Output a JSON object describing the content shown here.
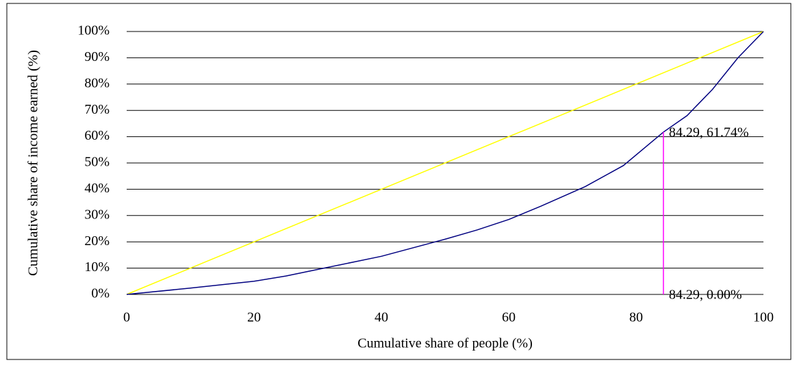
{
  "chart_data": {
    "type": "line",
    "xlabel": "Cumulative share of people (%)",
    "ylabel": "Cumulative share of income earned (%)",
    "xlim": [
      0,
      100
    ],
    "xticks": [
      0,
      20,
      40,
      60,
      80,
      100
    ],
    "ylim": [
      0,
      100
    ],
    "yticks": [
      {
        "value": 0,
        "label": "0%"
      },
      {
        "value": 10,
        "label": "10%"
      },
      {
        "value": 20,
        "label": "20%"
      },
      {
        "value": 30,
        "label": "30%"
      },
      {
        "value": 40,
        "label": "40%"
      },
      {
        "value": 50,
        "label": "50%"
      },
      {
        "value": 60,
        "label": "60%"
      },
      {
        "value": 70,
        "label": "70%"
      },
      {
        "value": 80,
        "label": "80%"
      },
      {
        "value": 90,
        "label": "90%"
      },
      {
        "value": 100,
        "label": "100%"
      }
    ],
    "grid": true,
    "series": [
      {
        "color": "#ffff00",
        "x": [
          0,
          100
        ],
        "values": [
          0,
          100
        ]
      },
      {
        "color": "#000080",
        "x": [
          0,
          10,
          20,
          25,
          30,
          40,
          50,
          55,
          60,
          65,
          72,
          78,
          84.29,
          88,
          92,
          96,
          100
        ],
        "values": [
          0,
          2.4,
          5,
          7,
          9.5,
          14.5,
          21,
          24.5,
          28.5,
          33.5,
          41,
          49,
          61.74,
          68,
          78,
          90,
          100
        ]
      },
      {
        "color": "#ff00ff",
        "x": [
          84.29,
          84.29
        ],
        "values": [
          0,
          61.74
        ],
        "value_labels": [
          "84.29, 0.00%",
          "84.29, 61.74%"
        ]
      }
    ]
  }
}
